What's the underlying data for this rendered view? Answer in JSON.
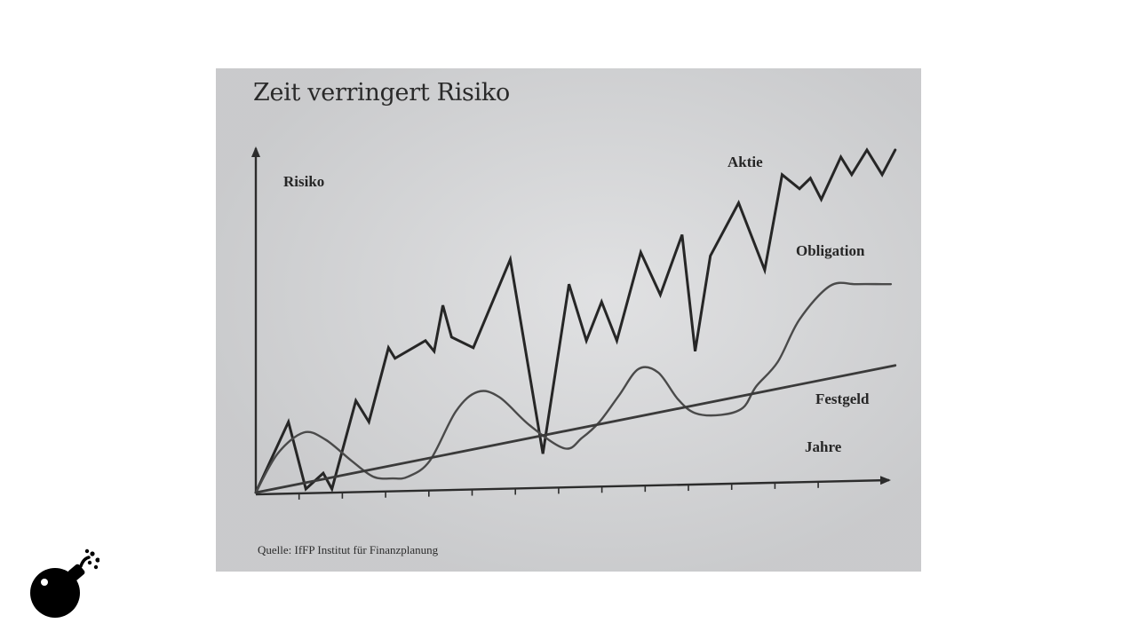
{
  "chart_data": {
    "type": "line",
    "title": "Zeit verringert Risiko",
    "ylabel": "Risiko",
    "xlabel": "Jahre",
    "xlim": [
      0,
      14.5
    ],
    "ylim": [
      0,
      10
    ],
    "grid": false,
    "legend": "none (series labelled directly on the lines)",
    "source": "Quelle: IfFP Institut für Finanzplanung",
    "series": [
      {
        "name": "Aktie",
        "x": [
          0,
          0.75,
          1.15,
          1.55,
          1.75,
          2.3,
          2.6,
          3.05,
          3.2,
          3.9,
          4.1,
          4.3,
          4.5,
          5.0,
          5.85,
          6.6,
          7.2,
          7.6,
          7.95,
          8.3,
          8.85,
          9.3,
          9.8,
          10.1,
          10.45,
          11.1,
          11.7,
          12.1,
          12.5,
          12.75,
          13.0,
          13.45,
          13.7,
          14.05,
          14.4,
          14.7
        ],
        "y": [
          0,
          2.0,
          0.1,
          0.55,
          0.1,
          2.6,
          2.0,
          4.1,
          3.8,
          4.3,
          4.0,
          5.3,
          4.4,
          4.1,
          6.6,
          1.1,
          5.9,
          4.3,
          5.4,
          4.3,
          6.8,
          5.6,
          7.3,
          4.0,
          6.7,
          8.2,
          6.3,
          9.0,
          8.6,
          8.9,
          8.3,
          9.5,
          9.0,
          9.7,
          9.0,
          9.7
        ]
      },
      {
        "name": "Obligation",
        "x": [
          0,
          0.5,
          1.1,
          1.6,
          2.2,
          2.7,
          3.15,
          3.5,
          4.0,
          4.6,
          5.1,
          5.6,
          6.3,
          7.1,
          7.5,
          7.9,
          8.35,
          8.8,
          9.25,
          9.7,
          10.1,
          10.7,
          11.2,
          11.5,
          12.0,
          12.5,
          13.2,
          13.8,
          14.4,
          14.6
        ],
        "y": [
          0,
          1.1,
          1.7,
          1.5,
          0.9,
          0.45,
          0.4,
          0.45,
          0.9,
          2.3,
          2.85,
          2.7,
          1.9,
          1.25,
          1.55,
          2.0,
          2.75,
          3.5,
          3.4,
          2.65,
          2.25,
          2.2,
          2.4,
          3.0,
          3.7,
          4.9,
          5.85,
          5.9,
          5.9,
          5.9
        ]
      },
      {
        "name": "Festgeld",
        "x": [
          0,
          14.7
        ],
        "y": [
          0,
          3.6
        ]
      }
    ]
  },
  "labels": {
    "aktie": "Aktie",
    "obligation": "Obligation",
    "festgeld": "Festgeld",
    "jahre": "Jahre",
    "risiko": "Risiko"
  },
  "colors": {
    "paper": "#d6d7d9",
    "ink": "#2c2c2c",
    "curve_obligation": "#4a4a4a",
    "logo": "#000000"
  },
  "logo": {
    "icon": "bomb-icon"
  }
}
